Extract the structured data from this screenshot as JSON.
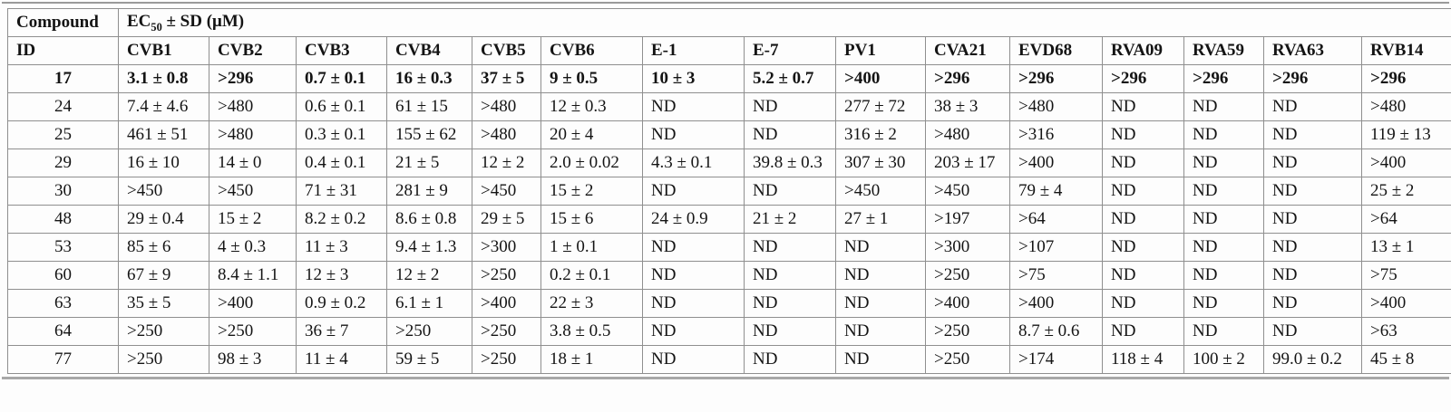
{
  "table": {
    "corner": {
      "line1": "Compound",
      "line2": "ID"
    },
    "group_header": {
      "prefix": "EC",
      "sub": "50",
      "suffix": " ± SD (μM)"
    },
    "virus_columns": [
      "CVB1",
      "CVB2",
      "CVB3",
      "CVB4",
      "CVB5",
      "CVB6",
      "E-1",
      "E-7",
      "PV1",
      "CVA21",
      "EVD68",
      "RVA09",
      "RVA59",
      "RVA63",
      "RVB14"
    ],
    "rows": [
      {
        "id": "17",
        "bold": true,
        "values": [
          "3.1 ± 0.8",
          ">296",
          "0.7 ± 0.1",
          "16 ± 0.3",
          "37 ± 5",
          "9 ± 0.5",
          "10 ± 3",
          "5.2 ± 0.7",
          ">400",
          ">296",
          ">296",
          ">296",
          ">296",
          ">296",
          ">296"
        ]
      },
      {
        "id": "24",
        "bold": false,
        "values": [
          "7.4 ± 4.6",
          ">480",
          "0.6 ± 0.1",
          "61 ± 15",
          ">480",
          "12 ± 0.3",
          "ND",
          "ND",
          "277 ± 72",
          "38 ± 3",
          ">480",
          "ND",
          "ND",
          "ND",
          ">480"
        ]
      },
      {
        "id": "25",
        "bold": false,
        "values": [
          "461 ± 51",
          ">480",
          "0.3 ± 0.1",
          "155 ± 62",
          ">480",
          "20 ± 4",
          "ND",
          "ND",
          "316 ± 2",
          ">480",
          ">316",
          "ND",
          "ND",
          "ND",
          "119 ± 13"
        ]
      },
      {
        "id": "29",
        "bold": false,
        "values": [
          "16 ± 10",
          "14 ± 0",
          "0.4 ± 0.1",
          "21 ± 5",
          "12 ± 2",
          "2.0 ± 0.02",
          "4.3 ± 0.1",
          "39.8 ± 0.3",
          "307 ± 30",
          "203 ± 17",
          ">400",
          "ND",
          "ND",
          "ND",
          ">400"
        ]
      },
      {
        "id": "30",
        "bold": false,
        "values": [
          ">450",
          ">450",
          "71 ± 31",
          "281 ± 9",
          ">450",
          "15 ± 2",
          "ND",
          "ND",
          ">450",
          ">450",
          "79 ± 4",
          "ND",
          "ND",
          "ND",
          "25 ± 2"
        ]
      },
      {
        "id": "48",
        "bold": false,
        "values": [
          "29 ± 0.4",
          "15 ± 2",
          "8.2 ± 0.2",
          "8.6 ± 0.8",
          "29 ± 5",
          "15 ± 6",
          "24 ± 0.9",
          "21 ± 2",
          "27 ± 1",
          ">197",
          ">64",
          "ND",
          "ND",
          "ND",
          ">64"
        ]
      },
      {
        "id": "53",
        "bold": false,
        "values": [
          "85 ± 6",
          "4 ± 0.3",
          "11 ± 3",
          "9.4 ± 1.3",
          ">300",
          "1 ± 0.1",
          "ND",
          "ND",
          "ND",
          ">300",
          ">107",
          "ND",
          "ND",
          "ND",
          "13 ± 1"
        ]
      },
      {
        "id": "60",
        "bold": false,
        "values": [
          "67 ± 9",
          "8.4 ± 1.1",
          "12 ± 3",
          "12 ± 2",
          ">250",
          "0.2 ± 0.1",
          "ND",
          "ND",
          "ND",
          ">250",
          ">75",
          "ND",
          "ND",
          "ND",
          ">75"
        ]
      },
      {
        "id": "63",
        "bold": false,
        "values": [
          "35 ± 5",
          ">400",
          "0.9 ± 0.2",
          "6.1 ± 1",
          ">400",
          "22 ± 3",
          "ND",
          "ND",
          "ND",
          ">400",
          ">400",
          "ND",
          "ND",
          "ND",
          ">400"
        ]
      },
      {
        "id": "64",
        "bold": false,
        "values": [
          ">250",
          ">250",
          "36 ± 7",
          ">250",
          ">250",
          "3.8 ± 0.5",
          "ND",
          "ND",
          "ND",
          ">250",
          "8.7 ± 0.6",
          "ND",
          "ND",
          "ND",
          ">63"
        ]
      },
      {
        "id": "77",
        "bold": false,
        "values": [
          ">250",
          "98 ± 3",
          "11 ± 4",
          "59 ± 5",
          ">250",
          "18 ± 1",
          "ND",
          "ND",
          "ND",
          ">250",
          ">174",
          "118 ± 4",
          "100 ± 2",
          "99.0 ± 0.2",
          "45 ± 8"
        ]
      }
    ]
  }
}
